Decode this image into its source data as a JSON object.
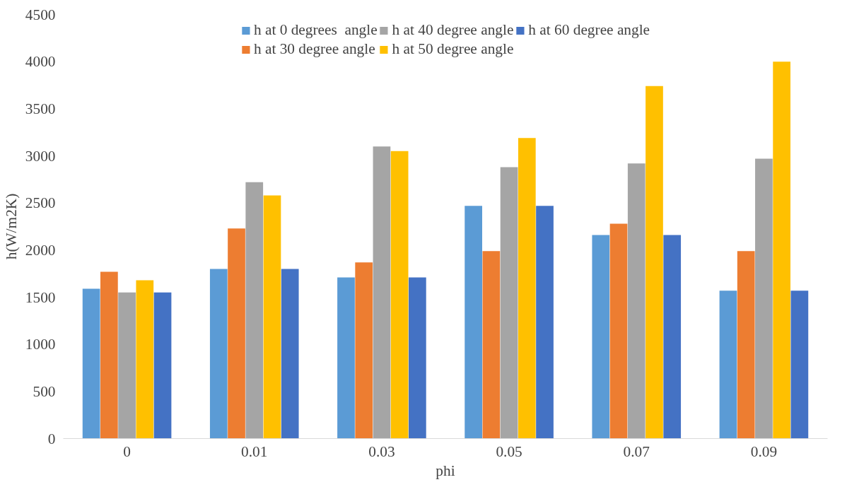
{
  "chart_data": {
    "type": "bar",
    "xlabel": "phi",
    "ylabel": "h(W/m2K)",
    "categories": [
      "0",
      "0.01",
      "0.03",
      "0.05",
      "0.07",
      "0.09"
    ],
    "series": [
      {
        "name": "h at 0 degrees  angle",
        "color": "#5b9bd5",
        "values": [
          1590,
          1800,
          1710,
          2470,
          2160,
          1570
        ]
      },
      {
        "name": "h at 30 degree angle",
        "color": "#ed7d31",
        "values": [
          1770,
          2230,
          1870,
          1990,
          2280,
          1990
        ]
      },
      {
        "name": "h at 40 degree angle",
        "color": "#a5a5a5",
        "values": [
          1550,
          2720,
          3100,
          2880,
          2920,
          2970
        ]
      },
      {
        "name": "h at 50 degree angle",
        "color": "#ffc000",
        "values": [
          1680,
          2580,
          3050,
          3190,
          3740,
          4000
        ]
      },
      {
        "name": "h at 60 degree angle",
        "color": "#4472c4",
        "values": [
          1550,
          1800,
          1710,
          2470,
          2160,
          1570
        ]
      }
    ],
    "ylim": [
      0,
      4500
    ],
    "yticks": [
      0,
      500,
      1000,
      1500,
      2000,
      2500,
      3000,
      3500,
      4000,
      4500
    ],
    "grid": false,
    "legend": "top"
  }
}
